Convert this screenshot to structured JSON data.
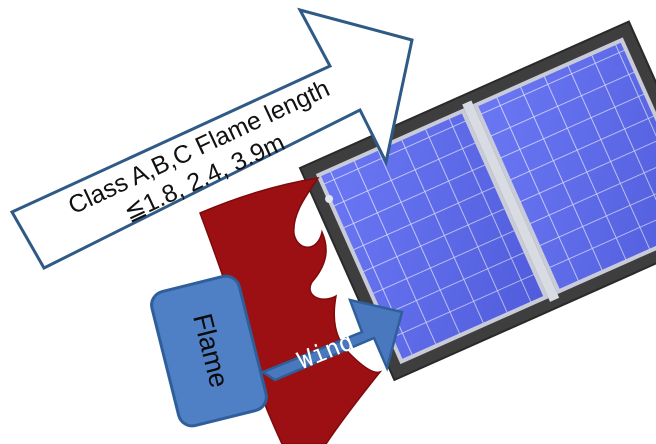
{
  "arrow_label": {
    "line1": "Class A,B,C Flame length",
    "line2": "≦1.8, 2.4, 3.9m"
  },
  "flame_label": "Flame",
  "wind_label": "Wind",
  "colors": {
    "panel_blue": "#5a68f2",
    "panel_grid": "#d8dcff",
    "frame_dark": "#3c3c3c",
    "flame_red": "#9c0f12",
    "label_box_blue": "#4f7fc4",
    "label_box_border": "#2f5f9a",
    "arrow_outline": "#2f5a86",
    "wind_arrow": "#4a78be"
  }
}
